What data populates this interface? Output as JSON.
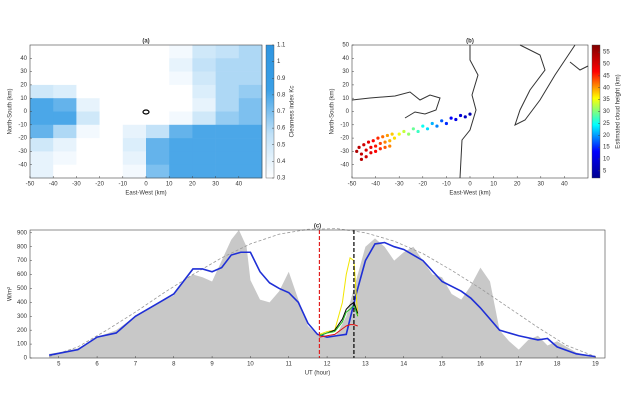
{
  "chart_data": [
    {
      "type": "heatmap",
      "title": "(a)",
      "xlabel": "East-West (km)",
      "ylabel": "North-South (km)",
      "xlim": [
        -50,
        50
      ],
      "ylim": [
        -50,
        50
      ],
      "xticks": [
        -50,
        -40,
        -30,
        -20,
        -10,
        0,
        10,
        20,
        30,
        40
      ],
      "yticks": [
        -40,
        -30,
        -20,
        -10,
        0,
        10,
        20,
        30,
        40
      ],
      "z": [
        [
          0.3,
          0.3,
          0.3,
          0.3,
          0.3,
          0.3,
          0.35,
          0.5,
          0.55,
          0.6
        ],
        [
          0.3,
          0.3,
          0.3,
          0.3,
          0.3,
          0.3,
          0.4,
          0.55,
          0.6,
          0.6
        ],
        [
          0.3,
          0.3,
          0.3,
          0.3,
          0.3,
          0.3,
          0.35,
          0.5,
          0.6,
          0.6
        ],
        [
          0.5,
          0.45,
          0.3,
          0.3,
          0.3,
          0.3,
          0.3,
          0.45,
          0.6,
          0.65
        ],
        [
          0.8,
          0.75,
          0.4,
          0.3,
          0.3,
          0.3,
          0.3,
          0.4,
          0.6,
          0.7
        ],
        [
          0.8,
          0.8,
          0.5,
          0.3,
          0.3,
          0.3,
          0.35,
          0.5,
          0.65,
          0.7
        ],
        [
          0.75,
          0.6,
          0.35,
          0.3,
          0.4,
          0.55,
          0.75,
          0.8,
          0.8,
          0.8
        ],
        [
          0.5,
          0.4,
          0.3,
          0.3,
          0.45,
          0.75,
          0.8,
          0.8,
          0.8,
          0.8
        ],
        [
          0.4,
          0.35,
          0.3,
          0.3,
          0.4,
          0.75,
          0.8,
          0.8,
          0.8,
          0.8
        ],
        [
          0.4,
          0.3,
          0.3,
          0.3,
          0.35,
          0.7,
          0.8,
          0.8,
          0.8,
          0.8
        ]
      ],
      "colormap": [
        "#ffffff",
        "#bfe0f7",
        "#3a9fe6",
        "#2f95e0"
      ],
      "clim": [
        0.3,
        1.1
      ],
      "cticks": [
        0.3,
        0.4,
        0.5,
        0.6,
        0.7,
        0.8,
        0.9,
        1,
        1.1
      ],
      "colorbar_label": "Clearness index Kc"
    },
    {
      "type": "scatter",
      "title": "(b)",
      "xlabel": "East-West (km)",
      "ylabel": "North-South (km)",
      "xlim": [
        -50,
        50
      ],
      "ylim": [
        -50,
        50
      ],
      "xticks": [
        -50,
        -40,
        -30,
        -20,
        -10,
        0,
        10,
        20,
        30,
        40
      ],
      "yticks": [
        -40,
        -30,
        -20,
        -10,
        0,
        10,
        20,
        30,
        40,
        50
      ],
      "x": [
        -48,
        -47,
        -46,
        -45,
        -44,
        -43,
        -42,
        -41,
        -40,
        -39,
        -38,
        -37,
        -36,
        -35,
        -34,
        -33,
        -32,
        -30,
        -28,
        -26,
        -24,
        -22,
        -20,
        -18,
        -16,
        -14,
        -12,
        -10,
        -8,
        -6,
        -4,
        -2,
        0,
        -46,
        -44,
        -42,
        -40,
        -38,
        -36,
        -34
      ],
      "values": [
        -30,
        -27,
        -32,
        -25,
        -29,
        -23,
        -27,
        -22,
        -26,
        -20,
        -24,
        -19,
        -23,
        -18,
        -22,
        -17,
        -20,
        -17,
        -15,
        -17,
        -13,
        -15,
        -11,
        -13,
        -9,
        -11,
        -7,
        -9,
        -5,
        -6,
        -3,
        -4,
        -2,
        -36,
        -34,
        -31,
        -30,
        -28,
        -27,
        -26
      ],
      "c": [
        54,
        53,
        52,
        51,
        50,
        49,
        48,
        47,
        46,
        45,
        44,
        42,
        41,
        40,
        39,
        38,
        37,
        35,
        33,
        31,
        29,
        27,
        25,
        23,
        21,
        19,
        17,
        15,
        13,
        11,
        9,
        7,
        5,
        53,
        51,
        49,
        47,
        45,
        43,
        41
      ],
      "colormap": [
        "#00008f",
        "#0000ff",
        "#00ffff",
        "#ffff00",
        "#ff0000",
        "#800000"
      ],
      "clim": [
        2,
        58
      ],
      "cticks": [
        5,
        10,
        15,
        20,
        25,
        30,
        35,
        40,
        45,
        50,
        55
      ],
      "colorbar_label": "Estimated cloud height (km)"
    },
    {
      "type": "line",
      "title": "(c)",
      "xlabel": "UT (hour)",
      "ylabel": "W/m²",
      "xlim": [
        4.25,
        19.25
      ],
      "ylim": [
        0,
        920
      ],
      "xticks": [
        5,
        6,
        7,
        8,
        9,
        10,
        11,
        12,
        13,
        14,
        15,
        16,
        17,
        18,
        19
      ],
      "yticks": [
        0,
        100,
        200,
        300,
        400,
        500,
        600,
        700,
        800,
        900
      ],
      "series": [
        {
          "style": "area",
          "color": "#c8c8c8",
          "x": [
            4.75,
            5,
            5.5,
            6,
            6.5,
            7,
            7.5,
            8,
            8.25,
            8.5,
            8.75,
            9,
            9.25,
            9.5,
            9.7,
            9.9,
            10,
            10.25,
            10.5,
            10.75,
            11,
            11.25,
            11.5,
            11.75,
            12,
            12.25,
            12.5,
            12.75,
            13,
            13.25,
            13.5,
            13.75,
            14,
            14.25,
            14.5,
            14.75,
            15,
            15.25,
            15.5,
            15.75,
            16,
            16.25,
            16.5,
            16.75,
            17,
            17.25,
            17.5,
            17.75,
            18,
            18.25,
            18.5,
            18.75,
            19
          ],
          "values": [
            30,
            40,
            70,
            150,
            200,
            300,
            380,
            450,
            560,
            600,
            580,
            550,
            700,
            850,
            920,
            800,
            560,
            420,
            400,
            480,
            620,
            420,
            230,
            170,
            150,
            170,
            300,
            550,
            800,
            860,
            800,
            700,
            760,
            800,
            700,
            600,
            580,
            460,
            420,
            520,
            650,
            550,
            200,
            120,
            60,
            130,
            160,
            90,
            120,
            80,
            40,
            20,
            10
          ]
        },
        {
          "style": "dash",
          "color": "#999999",
          "x": [
            4.75,
            5.5,
            6.25,
            7,
            7.75,
            8.5,
            9.25,
            10,
            10.75,
            11.5,
            12.25,
            13,
            13.75,
            14.5,
            15.25,
            16,
            16.75,
            17.5,
            18.25,
            19
          ],
          "values": [
            10,
            80,
            200,
            330,
            470,
            600,
            720,
            820,
            890,
            925,
            930,
            900,
            840,
            750,
            630,
            500,
            360,
            220,
            90,
            10
          ]
        },
        {
          "style": "line",
          "color": "#1f2fd6",
          "x": [
            4.75,
            5.5,
            6,
            6.5,
            7,
            7.5,
            8,
            8.5,
            8.75,
            9,
            9.25,
            9.5,
            9.75,
            10,
            10.25,
            10.5,
            10.75,
            11,
            11.25,
            11.5,
            11.75,
            12,
            12.25,
            12.5,
            12.75,
            13,
            13.25,
            13.5,
            13.75,
            14,
            14.5,
            15,
            15.5,
            15.75,
            16,
            16.5,
            17,
            17.5,
            17.75,
            18,
            18.5,
            19
          ],
          "values": [
            20,
            60,
            150,
            180,
            300,
            380,
            460,
            640,
            640,
            620,
            650,
            740,
            760,
            760,
            620,
            540,
            500,
            470,
            400,
            250,
            170,
            150,
            160,
            170,
            450,
            700,
            820,
            830,
            800,
            780,
            700,
            550,
            480,
            430,
            360,
            200,
            160,
            130,
            140,
            80,
            30,
            10
          ]
        },
        {
          "style": "thin",
          "color": "#f2e600",
          "x": [
            11.8,
            12,
            12.2,
            12.4,
            12.5,
            12.6,
            12.7,
            12.8
          ],
          "values": [
            170,
            190,
            200,
            400,
            600,
            720,
            700,
            300
          ]
        },
        {
          "style": "thin",
          "color": "#000000",
          "x": [
            11.8,
            12,
            12.2,
            12.4,
            12.5,
            12.6,
            12.7,
            12.8
          ],
          "values": [
            160,
            180,
            200,
            280,
            350,
            380,
            400,
            320
          ]
        },
        {
          "style": "thin",
          "color": "#22c022",
          "x": [
            11.8,
            12,
            12.2,
            12.4,
            12.5,
            12.6,
            12.7,
            12.8
          ],
          "values": [
            160,
            180,
            190,
            260,
            330,
            350,
            380,
            300
          ]
        },
        {
          "style": "thin",
          "color": "#e01010",
          "x": [
            11.8,
            12,
            12.2,
            12.4,
            12.5,
            12.6,
            12.7,
            12.8
          ],
          "values": [
            150,
            160,
            170,
            210,
            230,
            240,
            240,
            230
          ]
        }
      ],
      "vlines": [
        {
          "x": 11.8,
          "color": "#e02020"
        },
        {
          "x": 12.7,
          "color": "#000000"
        }
      ]
    }
  ]
}
